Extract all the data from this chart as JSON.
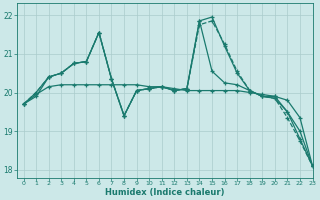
{
  "xlabel": "Humidex (Indice chaleur)",
  "bg_color": "#cce8e8",
  "line_color": "#1a7a6e",
  "grid_color": "#aacccc",
  "xlim": [
    -0.5,
    23
  ],
  "ylim": [
    17.8,
    22.3
  ],
  "yticks": [
    18,
    19,
    20,
    21,
    22
  ],
  "xticks": [
    0,
    1,
    2,
    3,
    4,
    5,
    6,
    7,
    8,
    9,
    10,
    11,
    12,
    13,
    14,
    15,
    16,
    17,
    18,
    19,
    20,
    21,
    22,
    23
  ],
  "series": [
    {
      "y": [
        19.7,
        20.0,
        20.4,
        20.5,
        20.75,
        20.8,
        21.55,
        20.35,
        19.4,
        20.05,
        20.1,
        20.15,
        20.05,
        20.1,
        21.75,
        21.85,
        21.25,
        20.55,
        20.05,
        19.9,
        19.85,
        19.35,
        18.75,
        18.1
      ],
      "ls": "--",
      "lw": 0.9
    },
    {
      "y": [
        19.7,
        20.0,
        20.4,
        20.5,
        20.75,
        20.8,
        21.55,
        20.35,
        19.4,
        20.05,
        20.1,
        20.15,
        20.05,
        20.1,
        21.85,
        21.95,
        21.2,
        20.5,
        20.05,
        19.9,
        19.85,
        19.5,
        18.8,
        18.1
      ],
      "ls": "-",
      "lw": 0.9
    },
    {
      "y": [
        19.7,
        19.95,
        20.15,
        20.2,
        20.2,
        20.2,
        20.2,
        20.2,
        20.2,
        20.2,
        20.15,
        20.15,
        20.1,
        20.05,
        20.05,
        20.05,
        20.05,
        20.05,
        20.0,
        19.95,
        19.9,
        19.5,
        19.0,
        18.1
      ],
      "ls": "-",
      "lw": 0.9
    },
    {
      "y": [
        19.7,
        19.9,
        20.4,
        20.5,
        20.75,
        20.8,
        21.55,
        20.35,
        19.4,
        20.05,
        20.1,
        20.15,
        20.05,
        20.1,
        21.85,
        20.55,
        20.25,
        20.2,
        20.05,
        19.9,
        19.9,
        19.8,
        19.35,
        18.1
      ],
      "ls": "-",
      "lw": 0.9
    }
  ]
}
